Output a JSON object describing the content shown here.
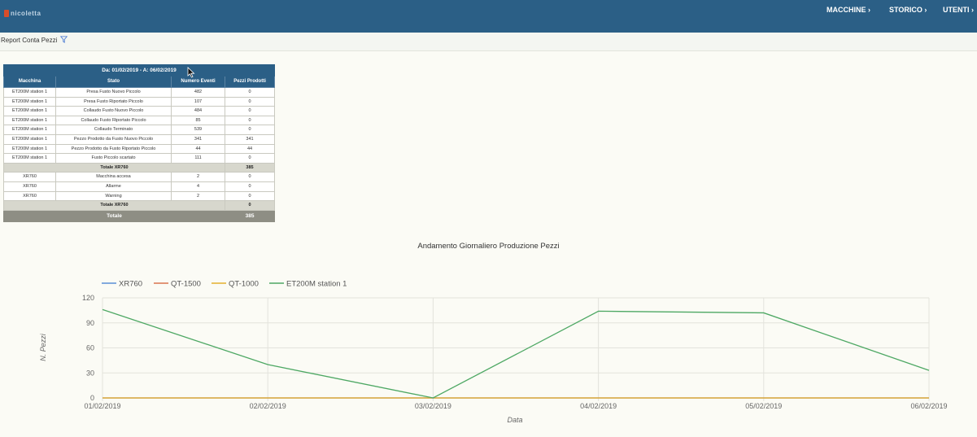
{
  "app": {
    "logo_text": "nicoletta",
    "nav": [
      {
        "label": "MACCHINE ›"
      },
      {
        "label": "STORICO ›"
      },
      {
        "label": "UTENTI ›"
      }
    ]
  },
  "toolbar": {
    "title": "Report Conta Pezzi"
  },
  "table": {
    "date_range": "Da: 01/02/2019 - A: 06/02/2019",
    "headers": [
      "Macchina",
      "Stato",
      "Numero Eventi",
      "Pezzi Prodotti"
    ],
    "rows": [
      {
        "type": "data",
        "cells": [
          "ET200M station 1",
          "Presa Fusto Nuovo Piccolo",
          "482",
          "0"
        ]
      },
      {
        "type": "data",
        "cells": [
          "ET200M station 1",
          "Presa Fusto Riportato Piccolo",
          "107",
          "0"
        ]
      },
      {
        "type": "data",
        "cells": [
          "ET200M station 1",
          "Collaudo Fusto Nuovo Piccolo",
          "484",
          "0"
        ]
      },
      {
        "type": "data",
        "cells": [
          "ET200M station 1",
          "Collaudo Fusto Riportato Piccolo",
          "85",
          "0"
        ]
      },
      {
        "type": "data",
        "cells": [
          "ET200M station 1",
          "Collaudo Terminato",
          "539",
          "0"
        ]
      },
      {
        "type": "data",
        "cells": [
          "ET200M station 1",
          "Pezzo Prodotto da Fusto Nuovo Piccolo",
          "341",
          "341"
        ]
      },
      {
        "type": "data",
        "cells": [
          "ET200M station 1",
          "Pezzo Prodotto da Fusto Riportato Piccolo",
          "44",
          "44"
        ]
      },
      {
        "type": "data",
        "cells": [
          "ET200M station 1",
          "Fusto Piccolo scartato",
          "111",
          "0"
        ]
      },
      {
        "type": "subtotal",
        "label": "Totale XR760",
        "value": "385"
      },
      {
        "type": "data",
        "cells": [
          "XR760",
          "Macchina accesa",
          "2",
          "0"
        ]
      },
      {
        "type": "data",
        "cells": [
          "XR760",
          "Allarme",
          "4",
          "0"
        ]
      },
      {
        "type": "data",
        "cells": [
          "XR760",
          "Warning",
          "2",
          "0"
        ]
      },
      {
        "type": "subtotal",
        "label": "Totale XR760",
        "value": "0"
      },
      {
        "type": "total",
        "label": "Totale",
        "value": "385"
      }
    ]
  },
  "chart_data": {
    "type": "line",
    "title": "Andamento Giornaliero Produzione Pezzi",
    "xlabel": "Data",
    "ylabel": "N. Pezzi",
    "categories": [
      "01/02/2019",
      "02/02/2019",
      "03/02/2019",
      "04/02/2019",
      "05/02/2019",
      "06/02/2019"
    ],
    "ylim": [
      0,
      120
    ],
    "yticks": [
      "120",
      "90",
      "60",
      "30",
      "0"
    ],
    "grid": true,
    "legend_position": "top-left",
    "series": [
      {
        "name": "XR760",
        "color": "#5b8fd6",
        "values": [
          0,
          0,
          0,
          0,
          0,
          0
        ]
      },
      {
        "name": "QT-1500",
        "color": "#d9744f",
        "values": [
          0,
          0,
          0,
          0,
          0,
          0
        ]
      },
      {
        "name": "QT-1000",
        "color": "#e3b02e",
        "values": [
          0,
          0,
          0,
          0,
          0,
          0
        ]
      },
      {
        "name": "ET200M station 1",
        "color": "#4ea864",
        "values": [
          106,
          40,
          0,
          104,
          102,
          33
        ]
      }
    ]
  }
}
